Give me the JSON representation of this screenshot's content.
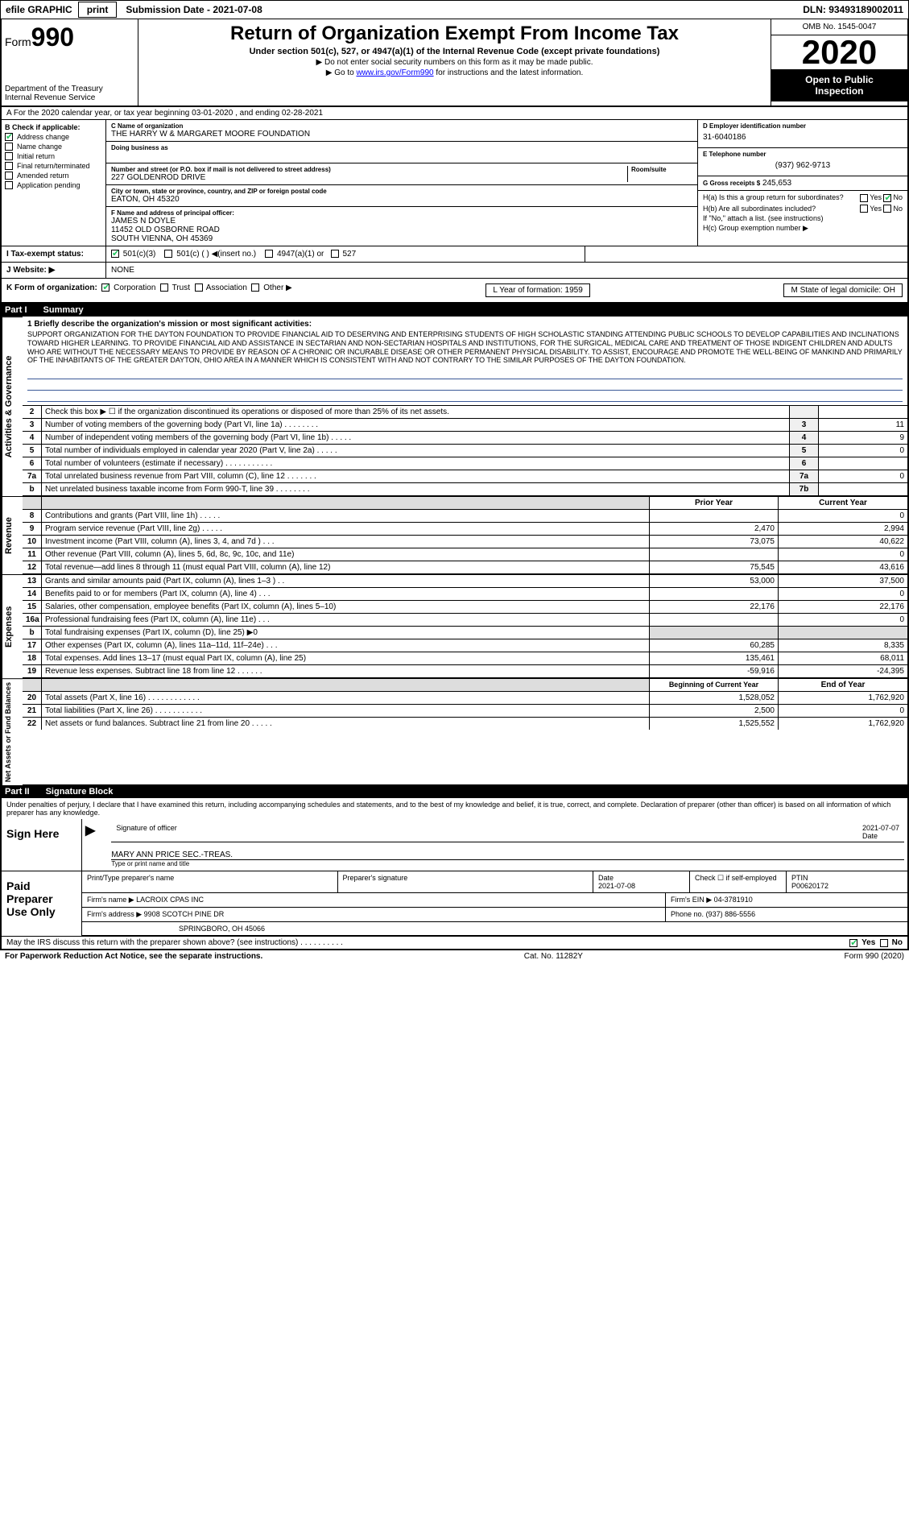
{
  "top": {
    "efile": "efile GRAPHIC",
    "print": "print",
    "sub_date_label": "Submission Date - 2021-07-08",
    "dln": "DLN: 93493189002011"
  },
  "header": {
    "form_prefix": "Form",
    "form_number": "990",
    "dept1": "Department of the Treasury",
    "dept2": "Internal Revenue Service",
    "title": "Return of Organization Exempt From Income Tax",
    "subtitle": "Under section 501(c), 527, or 4947(a)(1) of the Internal Revenue Code (except private foundations)",
    "note1": "▶ Do not enter social security numbers on this form as it may be made public.",
    "note2_pre": "▶ Go to ",
    "note2_link": "www.irs.gov/Form990",
    "note2_post": " for instructions and the latest information.",
    "omb": "OMB No. 1545-0047",
    "year": "2020",
    "open1": "Open to Public",
    "open2": "Inspection"
  },
  "period": "A For the 2020 calendar year, or tax year beginning 03-01-2020  , and ending 02-28-2021",
  "checkB": {
    "label": "B Check if applicable:",
    "items": [
      "Address change",
      "Name change",
      "Initial return",
      "Final return/terminated",
      "Amended return",
      "Application pending"
    ]
  },
  "entity": {
    "c_label": "C Name of organization",
    "name": "THE HARRY W & MARGARET MOORE FOUNDATION",
    "dba_label": "Doing business as",
    "addr_label": "Number and street (or P.O. box if mail is not delivered to street address)",
    "room_label": "Room/suite",
    "street": "227 GOLDENROD DRIVE",
    "city_label": "City or town, state or province, country, and ZIP or foreign postal code",
    "city": "EATON, OH  45320",
    "f_label": "F Name and address of principal officer:",
    "f_name": "JAMES N DOYLE",
    "f_street": "11452 OLD OSBORNE ROAD",
    "f_city": "SOUTH VIENNA, OH  45369"
  },
  "right": {
    "d_label": "D Employer identification number",
    "ein": "31-6040186",
    "e_label": "E Telephone number",
    "phone": "(937) 962-9713",
    "g_label": "G Gross receipts $",
    "g_amt": "245,653",
    "ha": "H(a)  Is this a group return for subordinates?",
    "hb": "H(b)  Are all subordinates included?",
    "h_note": "If \"No,\" attach a list. (see instructions)",
    "hc": "H(c)  Group exemption number ▶"
  },
  "rowI": {
    "label": "I   Tax-exempt status:",
    "opt1": "501(c)(3)",
    "opt2": "501(c) (  ) ◀(insert no.)",
    "opt3": "4947(a)(1) or",
    "opt4": "527"
  },
  "rowJ": {
    "label": "J   Website: ▶",
    "val": "NONE"
  },
  "rowK": {
    "label": "K Form of organization:",
    "opts": [
      "Corporation",
      "Trust",
      "Association",
      "Other ▶"
    ],
    "l": "L Year of formation: 1959",
    "m": "M State of legal domicile: OH"
  },
  "part1": {
    "num": "Part I",
    "title": "Summary"
  },
  "mission": {
    "label": "1   Briefly describe the organization's mission or most significant activities:",
    "text": "SUPPORT ORGANIZATION FOR THE DAYTON FOUNDATION TO PROVIDE FINANCIAL AID TO DESERVING AND ENTERPRISING STUDENTS OF HIGH SCHOLASTIC STANDING ATTENDING PUBLIC SCHOOLS TO DEVELOP CAPABILITIES AND INCLINATIONS TOWARD HIGHER LEARNING. TO PROVIDE FINANCIAL AID AND ASSISTANCE IN SECTARIAN AND NON-SECTARIAN HOSPITALS AND INSTITUTIONS, FOR THE SURGICAL, MEDICAL CARE AND TREATMENT OF THOSE INDIGENT CHILDREN AND ADULTS WHO ARE WITHOUT THE NECESSARY MEANS TO PROVIDE BY REASON OF A CHRONIC OR INCURABLE DISEASE OR OTHER PERMANENT PHYSICAL DISABILITY. TO ASSIST, ENCOURAGE AND PROMOTE THE WELL-BEING OF MANKIND AND PRIMARILY OF THE INHABITANTS OF THE GREATER DAYTON, OHIO AREA IN A MANNER WHICH IS CONSISTENT WITH AND NOT CONTRARY TO THE SIMILAR PURPOSES OF THE DAYTON FOUNDATION."
  },
  "gov_rows": [
    {
      "n": "2",
      "t": "Check this box ▶ ☐ if the organization discontinued its operations or disposed of more than 25% of its net assets.",
      "c": "",
      "v": ""
    },
    {
      "n": "3",
      "t": "Number of voting members of the governing body (Part VI, line 1a)  .  .  .  .  .  .  .  .",
      "c": "3",
      "v": "11"
    },
    {
      "n": "4",
      "t": "Number of independent voting members of the governing body (Part VI, line 1b)  .  .  .  .  .",
      "c": "4",
      "v": "9"
    },
    {
      "n": "5",
      "t": "Total number of individuals employed in calendar year 2020 (Part V, line 2a)  .  .  .  .  .",
      "c": "5",
      "v": "0"
    },
    {
      "n": "6",
      "t": "Total number of volunteers (estimate if necessary)  .  .  .  .  .  .  .  .  .  .  .",
      "c": "6",
      "v": ""
    },
    {
      "n": "7a",
      "t": "Total unrelated business revenue from Part VIII, column (C), line 12  .  .  .  .  .  .  .",
      "c": "7a",
      "v": "0"
    },
    {
      "n": "b",
      "t": "Net unrelated business taxable income from Form 990-T, line 39  .  .  .  .  .  .  .  .",
      "c": "7b",
      "v": ""
    }
  ],
  "rev_head": {
    "py": "Prior Year",
    "cy": "Current Year"
  },
  "rev_rows": [
    {
      "n": "8",
      "t": "Contributions and grants (Part VIII, line 1h)  .  .  .  .  .",
      "py": "",
      "cy": "0"
    },
    {
      "n": "9",
      "t": "Program service revenue (Part VIII, line 2g)  .  .  .  .  .",
      "py": "2,470",
      "cy": "2,994"
    },
    {
      "n": "10",
      "t": "Investment income (Part VIII, column (A), lines 3, 4, and 7d )  .  .  .",
      "py": "73,075",
      "cy": "40,622"
    },
    {
      "n": "11",
      "t": "Other revenue (Part VIII, column (A), lines 5, 6d, 8c, 9c, 10c, and 11e)",
      "py": "",
      "cy": "0"
    },
    {
      "n": "12",
      "t": "Total revenue—add lines 8 through 11 (must equal Part VIII, column (A), line 12)",
      "py": "75,545",
      "cy": "43,616"
    }
  ],
  "exp_rows": [
    {
      "n": "13",
      "t": "Grants and similar amounts paid (Part IX, column (A), lines 1–3 )  .  .",
      "py": "53,000",
      "cy": "37,500"
    },
    {
      "n": "14",
      "t": "Benefits paid to or for members (Part IX, column (A), line 4)  .  .  .",
      "py": "",
      "cy": "0"
    },
    {
      "n": "15",
      "t": "Salaries, other compensation, employee benefits (Part IX, column (A), lines 5–10)",
      "py": "22,176",
      "cy": "22,176"
    },
    {
      "n": "16a",
      "t": "Professional fundraising fees (Part IX, column (A), line 11e)  .  .  .",
      "py": "",
      "cy": "0"
    },
    {
      "n": "b",
      "t": "Total fundraising expenses (Part IX, column (D), line 25) ▶0",
      "py": "",
      "cy": "",
      "shade": true
    },
    {
      "n": "17",
      "t": "Other expenses (Part IX, column (A), lines 11a–11d, 11f–24e)  .  .  .",
      "py": "60,285",
      "cy": "8,335"
    },
    {
      "n": "18",
      "t": "Total expenses. Add lines 13–17 (must equal Part IX, column (A), line 25)",
      "py": "135,461",
      "cy": "68,011"
    },
    {
      "n": "19",
      "t": "Revenue less expenses. Subtract line 18 from line 12  .  .  .  .  .  .",
      "py": "-59,916",
      "cy": "-24,395"
    }
  ],
  "net_head": {
    "py": "Beginning of Current Year",
    "cy": "End of Year"
  },
  "net_rows": [
    {
      "n": "20",
      "t": "Total assets (Part X, line 16)  .  .  .  .  .  .  .  .  .  .  .  .",
      "py": "1,528,052",
      "cy": "1,762,920"
    },
    {
      "n": "21",
      "t": "Total liabilities (Part X, line 26)  .  .  .  .  .  .  .  .  .  .  .",
      "py": "2,500",
      "cy": "0"
    },
    {
      "n": "22",
      "t": "Net assets or fund balances. Subtract line 21 from line 20  .  .  .  .  .",
      "py": "1,525,552",
      "cy": "1,762,920"
    }
  ],
  "part2": {
    "num": "Part II",
    "title": "Signature Block"
  },
  "sig_decl": "Under penalties of perjury, I declare that I have examined this return, including accompanying schedules and statements, and to the best of my knowledge and belief, it is true, correct, and complete. Declaration of preparer (other than officer) is based on all information of which preparer has any knowledge.",
  "sign": {
    "here": "Sign Here",
    "sig_label": "Signature of officer",
    "date": "2021-07-07",
    "date_label": "Date",
    "name": "MARY ANN PRICE  SEC.-TREAS.",
    "name_label": "Type or print name and title"
  },
  "prep": {
    "label": "Paid Preparer Use Only",
    "r1": {
      "a": "Print/Type preparer's name",
      "b": "Preparer's signature",
      "c": "Date",
      "d": "2021-07-08",
      "e": "Check ☐ if self-employed",
      "f": "PTIN",
      "g": "P00620172"
    },
    "r2": {
      "a": "Firm's name    ▶",
      "b": "LACROIX CPAS INC",
      "c": "Firm's EIN ▶",
      "d": "04-3781910"
    },
    "r3": {
      "a": "Firm's address ▶",
      "b": "9908 SCOTCH PINE DR",
      "c": "Phone no.",
      "d": "(937) 886-5556"
    },
    "r3b": "SPRINGBORO, OH  45066"
  },
  "bottom": {
    "q": "May the IRS discuss this return with the preparer shown above? (see instructions)  .  .  .  .  .  .  .  .  .  .",
    "yes": "Yes",
    "no": "No",
    "pra": "For Paperwork Reduction Act Notice, see the separate instructions.",
    "cat": "Cat. No. 11282Y",
    "form": "Form 990 (2020)"
  },
  "yn": {
    "yes": "Yes",
    "no": "No"
  },
  "vlabels": {
    "gov": "Activities & Governance",
    "rev": "Revenue",
    "exp": "Expenses",
    "net": "Net Assets or Fund Balances"
  }
}
